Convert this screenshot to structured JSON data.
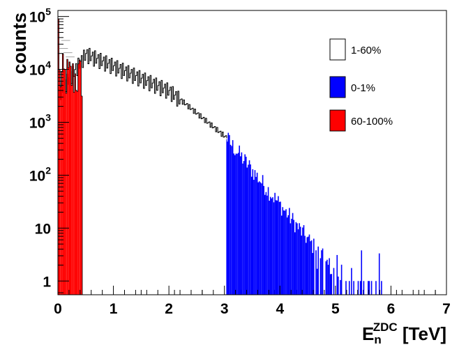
{
  "chart_data": {
    "type": "histogram",
    "title": "",
    "xlabel": {
      "base": "E",
      "sub": "n",
      "sup": "ZDC",
      "unit": " [TeV]"
    },
    "ylabel": "counts",
    "x_range": [
      0,
      7
    ],
    "y_range": [
      0.55,
      130000
    ],
    "y_scale": "log",
    "grid": false,
    "legend_position": "top-right",
    "x_ticks": [
      "0",
      "1",
      "2",
      "3",
      "4",
      "5",
      "6",
      "7"
    ],
    "y_ticks": [
      {
        "value": 1,
        "base": "1",
        "exp": ""
      },
      {
        "value": 10,
        "base": "10",
        "exp": ""
      },
      {
        "value": 100,
        "base": "10",
        "exp": "2"
      },
      {
        "value": 1000,
        "base": "10",
        "exp": "3"
      },
      {
        "value": 10000,
        "base": "10",
        "exp": "4"
      },
      {
        "value": 100000,
        "base": "10",
        "exp": "5"
      }
    ],
    "bin_width": 0.02,
    "series": [
      {
        "name": "1-60%",
        "color": "#ffffff",
        "stroke": "#000000",
        "style": "outline",
        "x_range": [
          0.02,
          3.04
        ],
        "peak_count": 20000,
        "peak_x": 0.5,
        "count_at_3TeV": 500,
        "periodic_structure_step_TeV": 0.05
      },
      {
        "name": "0-1%",
        "color": "#0000ff",
        "stroke": "#0000ff",
        "style": "filled",
        "x_range": [
          3.04,
          5.85
        ],
        "count_at_3TeV": 480,
        "count_at_4.5TeV": 6,
        "last_bin_count": 1
      },
      {
        "name": "60-100%",
        "color": "#ff0000",
        "stroke": "#000000",
        "style": "filled",
        "x_range": [
          0.0,
          0.44
        ],
        "first_bin_count": 90000,
        "typical_count": 7000
      }
    ]
  }
}
